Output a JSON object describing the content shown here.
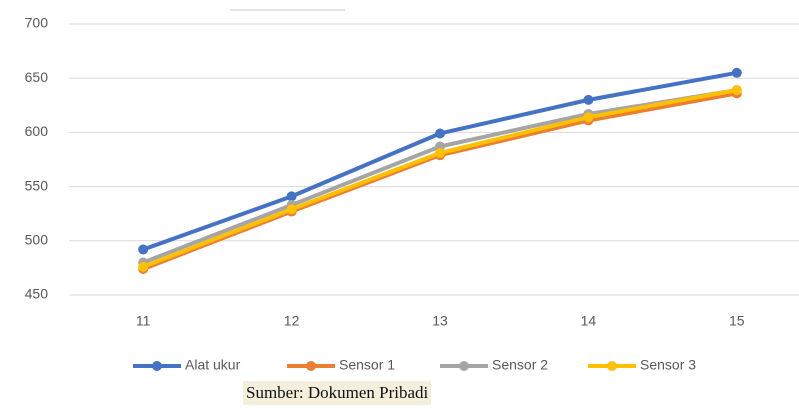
{
  "chart_data": {
    "type": "line",
    "categories": [
      "11",
      "12",
      "13",
      "14",
      "15"
    ],
    "series": [
      {
        "name": "Alat ukur",
        "color": "#4472c4",
        "values": [
          492,
          541,
          599,
          630,
          655
        ]
      },
      {
        "name": "Sensor 1",
        "color": "#ed7d31",
        "values": [
          474,
          527,
          579,
          611,
          636
        ]
      },
      {
        "name": "Sensor 2",
        "color": "#a5a5a5",
        "values": [
          480,
          533,
          587,
          617,
          639
        ]
      },
      {
        "name": "Sensor 3",
        "color": "#ffc000",
        "values": [
          476,
          529,
          581,
          614,
          639
        ]
      }
    ],
    "ylim": [
      450,
      700
    ],
    "yticks": [
      450,
      500,
      550,
      600,
      650,
      700
    ],
    "grid": true,
    "legend": "bottom"
  },
  "caption": "Sumber: Dokumen Pribadi"
}
